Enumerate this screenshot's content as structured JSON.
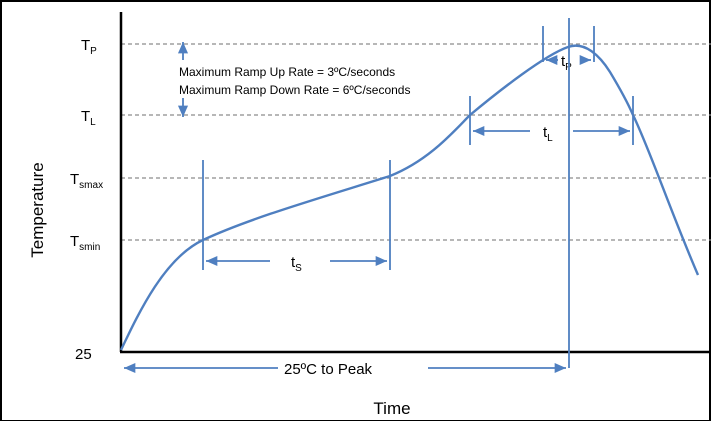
{
  "colors": {
    "curve": "#4f7fc0",
    "grid": "#8c8c8c",
    "axis": "#000000",
    "border": "#000000"
  },
  "levels": {
    "tp": {
      "main": "T",
      "sub": "P"
    },
    "tl": {
      "main": "T",
      "sub": "L"
    },
    "tsmax": {
      "main": "T",
      "sub": "smax"
    },
    "tsmin": {
      "main": "T",
      "sub": "smin"
    },
    "base": "25"
  },
  "axes": {
    "y_label": "Temperature",
    "x_label": "Time"
  },
  "notes": {
    "ramp_up": "Maximum Ramp Up Rate = 3ºC/seconds",
    "ramp_down": "Maximum Ramp Down Rate = 6ºC/seconds"
  },
  "intervals": {
    "ts": {
      "main": "t",
      "sub": "S"
    },
    "tl": {
      "main": "t",
      "sub": "L"
    },
    "tp": {
      "main": "t",
      "sub": "P"
    },
    "peak": "25ºC to Peak"
  }
}
